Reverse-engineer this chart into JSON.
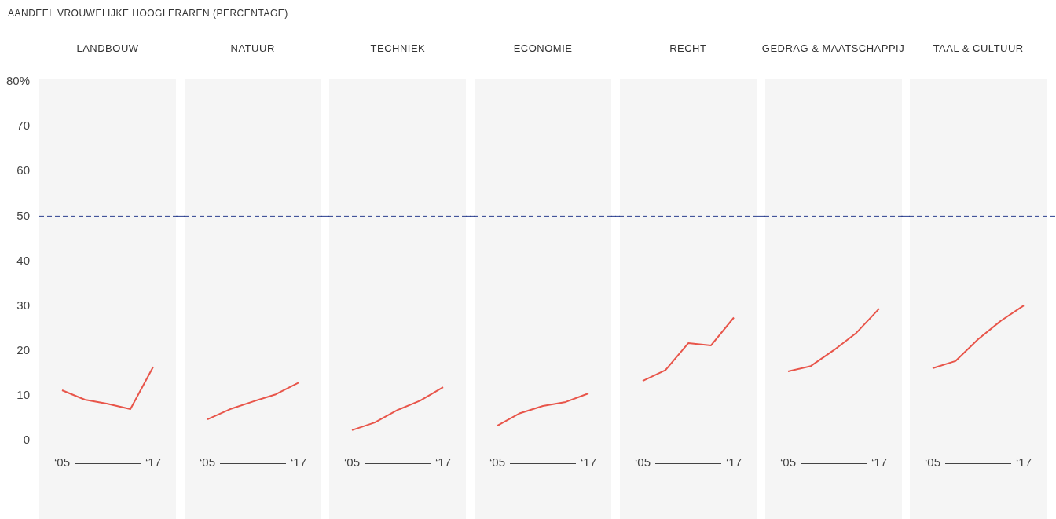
{
  "chart_data": [
    {
      "type": "line",
      "title": "LANDBOUW",
      "ylabel": "AANDEEL VROUWELIJKE HOOGLERAREN (PERCENTAGE)",
      "categories": [
        "‘05",
        null,
        null,
        null,
        "‘17"
      ],
      "series": [
        {
          "color": "#e8554a",
          "values": [
            11.2,
            9.1,
            8.2,
            7.0,
            16.4
          ]
        }
      ],
      "ylim": [
        -17.5,
        80.7
      ],
      "yticks": [
        0,
        10,
        20,
        30,
        40,
        50,
        60,
        70,
        {
          "value": 80,
          "label": "80%"
        }
      ],
      "ref_lines": [
        {
          "axis": "y",
          "value": 50,
          "color": "#2b3f8f",
          "line_style": "dashed"
        }
      ]
    },
    {
      "type": "line",
      "title": "NATUUR",
      "categories": [
        "‘05",
        null,
        null,
        null,
        "‘17"
      ],
      "series": [
        {
          "color": "#e8554a",
          "values": [
            4.7,
            7.0,
            8.7,
            10.3,
            12.9
          ]
        }
      ],
      "ylim": [
        -17.5,
        80.7
      ],
      "tick_labels": "x",
      "ref_lines": [
        {
          "axis": "y",
          "value": 50,
          "color": "#2b3f8f",
          "line_style": "dashed"
        }
      ]
    },
    {
      "type": "line",
      "title": "TECHNIEK",
      "categories": [
        "‘05",
        null,
        null,
        null,
        "‘17"
      ],
      "series": [
        {
          "color": "#e8554a",
          "values": [
            2.3,
            4.0,
            6.8,
            8.9,
            11.9
          ]
        }
      ],
      "ylim": [
        -17.5,
        80.7
      ],
      "tick_labels": "x",
      "ref_lines": [
        {
          "axis": "y",
          "value": 50,
          "color": "#2b3f8f",
          "line_style": "dashed"
        }
      ]
    },
    {
      "type": "line",
      "title": "ECONOMIE",
      "categories": [
        "‘05",
        null,
        null,
        null,
        "‘17"
      ],
      "series": [
        {
          "color": "#e8554a",
          "values": [
            3.3,
            6.1,
            7.7,
            8.6,
            10.5
          ]
        }
      ],
      "ylim": [
        -17.5,
        80.7
      ],
      "tick_labels": "x",
      "ref_lines": [
        {
          "axis": "y",
          "value": 50,
          "color": "#2b3f8f",
          "line_style": "dashed"
        }
      ]
    },
    {
      "type": "line",
      "title": "RECHT",
      "categories": [
        "‘05",
        null,
        null,
        null,
        "‘17"
      ],
      "series": [
        {
          "color": "#e8554a",
          "values": [
            13.3,
            15.7,
            21.7,
            21.2,
            27.4
          ]
        }
      ],
      "ylim": [
        -17.5,
        80.7
      ],
      "tick_labels": "x",
      "ref_lines": [
        {
          "axis": "y",
          "value": 50,
          "color": "#2b3f8f",
          "line_style": "dashed"
        }
      ]
    },
    {
      "type": "line",
      "title": "GEDRAG & MAATSCHAPPIJ",
      "categories": [
        "‘05",
        null,
        null,
        null,
        "‘17"
      ],
      "series": [
        {
          "color": "#e8554a",
          "values": [
            15.4,
            16.6,
            20.1,
            24.0,
            29.4
          ]
        }
      ],
      "ylim": [
        -17.5,
        80.7
      ],
      "tick_labels": "x",
      "ref_lines": [
        {
          "axis": "y",
          "value": 50,
          "color": "#2b3f8f",
          "line_style": "dashed"
        }
      ]
    },
    {
      "type": "line",
      "title": "TAAL & CULTUUR",
      "categories": [
        "‘05",
        null,
        null,
        null,
        "‘17"
      ],
      "series": [
        {
          "color": "#e8554a",
          "values": [
            16.1,
            17.7,
            22.6,
            26.7,
            30.1
          ]
        }
      ],
      "ylim": [
        -17.5,
        80.7
      ],
      "tick_labels": "x",
      "ref_lines": [
        {
          "axis": "y",
          "value": 50,
          "color": "#2b3f8f",
          "line_style": "dashed"
        }
      ]
    }
  ]
}
